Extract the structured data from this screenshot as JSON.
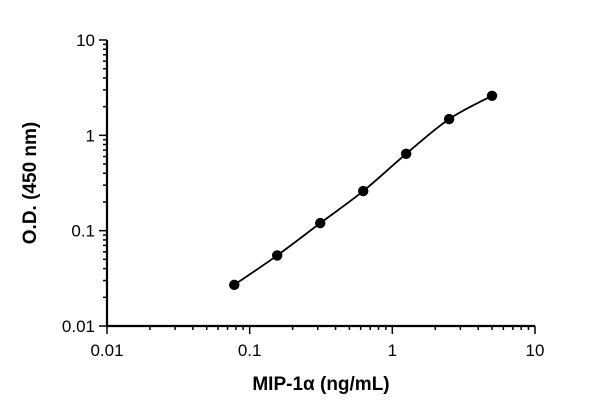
{
  "chart_data": {
    "type": "scatter",
    "title": "",
    "xlabel": "MIP-1α (ng/mL)",
    "ylabel": "O.D. (450 nm)",
    "x_scale": "log",
    "y_scale": "log",
    "xlim": [
      0.01,
      10
    ],
    "ylim": [
      0.01,
      10
    ],
    "x_ticks": [
      "0.01",
      "0.1",
      "1",
      "10"
    ],
    "y_ticks": [
      "0.01",
      "0.1",
      "1",
      "10"
    ],
    "grid": false,
    "legend": "none",
    "fit_curve": true,
    "series": [
      {
        "x": [
          0.078,
          0.156,
          0.3125,
          0.625,
          1.25,
          2.5,
          5.0
        ],
        "y": [
          0.027,
          0.055,
          0.12,
          0.26,
          0.64,
          1.48,
          2.6
        ]
      }
    ],
    "colors": {
      "axis": "#000000",
      "marker": "#000000",
      "curve": "#000000"
    }
  }
}
